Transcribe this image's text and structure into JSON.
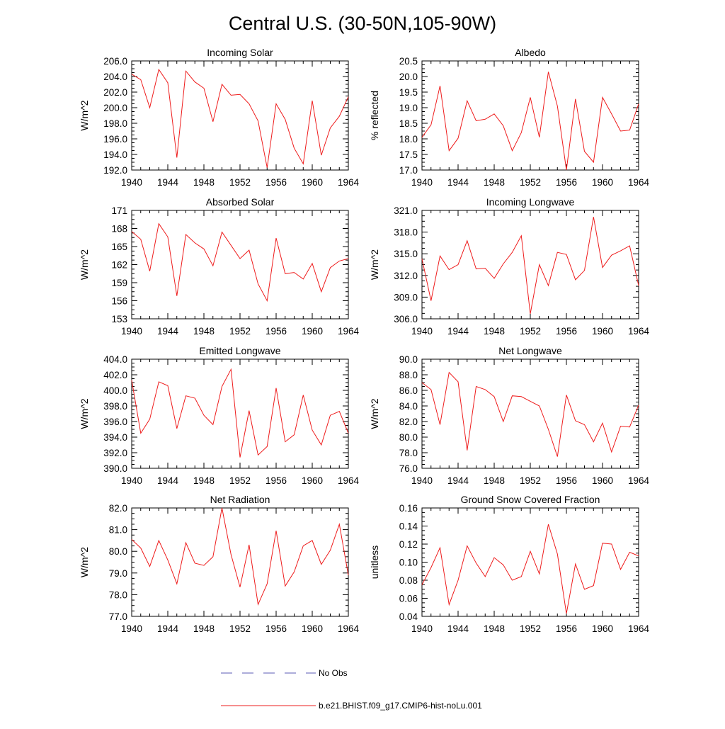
{
  "figure": {
    "title": "Central U.S. (30-50N,105-90W)"
  },
  "legend": {
    "items": [
      {
        "label": "No Obs",
        "color": "#5b5bb5",
        "dash": true
      },
      {
        "label": "b.e21.BHIST.f09_g17.CMIP6-hist-noLu.001",
        "color": "#ee1c1c",
        "dash": false
      }
    ]
  },
  "chart_data": [
    {
      "type": "line",
      "title": "Incoming Solar",
      "ylabel": "W/m^2",
      "xlim": [
        1940,
        1964
      ],
      "ylim": [
        192,
        206
      ],
      "yticks": [
        192,
        194,
        196,
        198,
        200,
        202,
        204,
        206
      ],
      "ytick_labels": [
        "192.0",
        "194.0",
        "196.0",
        "198.0",
        "200.0",
        "202.0",
        "204.0",
        "206.0"
      ],
      "xticks": [
        1940,
        1944,
        1948,
        1952,
        1956,
        1960,
        1964
      ],
      "xtick_labels": [
        "1940",
        "1944",
        "1948",
        "1952",
        "1956",
        "1960",
        "1964"
      ],
      "x": [
        1940,
        1941,
        1942,
        1943,
        1944,
        1945,
        1946,
        1947,
        1948,
        1949,
        1950,
        1951,
        1952,
        1953,
        1954,
        1955,
        1956,
        1957,
        1958,
        1959,
        1960,
        1961,
        1962,
        1963,
        1964
      ],
      "series": [
        {
          "values": [
            204.3,
            203.6,
            200.0,
            204.9,
            203.2,
            193.6,
            204.7,
            203.3,
            202.5,
            198.2,
            203.0,
            201.6,
            201.7,
            200.5,
            198.3,
            192.3,
            200.5,
            198.5,
            194.8,
            192.8,
            200.9,
            193.9,
            197.4,
            198.9,
            201.4
          ]
        }
      ]
    },
    {
      "type": "line",
      "title": "Albedo",
      "ylabel": "% reflected",
      "xlim": [
        1940,
        1964
      ],
      "ylim": [
        17.0,
        20.5
      ],
      "yticks": [
        17.0,
        17.5,
        18.0,
        18.5,
        19.0,
        19.5,
        20.0,
        20.5
      ],
      "ytick_labels": [
        "17.0",
        "17.5",
        "18.0",
        "18.5",
        "19.0",
        "19.5",
        "20.0",
        "20.5"
      ],
      "xticks": [
        1940,
        1944,
        1948,
        1952,
        1956,
        1960,
        1964
      ],
      "xtick_labels": [
        "1940",
        "1944",
        "1948",
        "1952",
        "1956",
        "1960",
        "1964"
      ],
      "x": [
        1940,
        1941,
        1942,
        1943,
        1944,
        1945,
        1946,
        1947,
        1948,
        1949,
        1950,
        1951,
        1952,
        1953,
        1954,
        1955,
        1956,
        1957,
        1958,
        1959,
        1960,
        1961,
        1962,
        1963,
        1964
      ],
      "series": [
        {
          "values": [
            18.05,
            18.45,
            19.7,
            17.62,
            18.02,
            19.22,
            18.58,
            18.63,
            18.8,
            18.42,
            17.62,
            18.2,
            19.33,
            18.05,
            20.15,
            19.05,
            17.0,
            19.28,
            17.6,
            17.25,
            19.33,
            18.8,
            18.25,
            18.28,
            19.12
          ]
        }
      ]
    },
    {
      "type": "line",
      "title": "Absorbed Solar",
      "ylabel": "W/m^2",
      "xlim": [
        1940,
        1964
      ],
      "ylim": [
        153,
        171
      ],
      "yticks": [
        153,
        156,
        159,
        162,
        165,
        168,
        171
      ],
      "ytick_labels": [
        "153",
        "156",
        "159",
        "162",
        "165",
        "168",
        "171"
      ],
      "xticks": [
        1940,
        1944,
        1948,
        1952,
        1956,
        1960,
        1964
      ],
      "xtick_labels": [
        "1940",
        "1944",
        "1948",
        "1952",
        "1956",
        "1960",
        "1964"
      ],
      "x": [
        1940,
        1941,
        1942,
        1943,
        1944,
        1945,
        1946,
        1947,
        1948,
        1949,
        1950,
        1951,
        1952,
        1953,
        1954,
        1955,
        1956,
        1957,
        1958,
        1959,
        1960,
        1961,
        1962,
        1963,
        1964
      ],
      "series": [
        {
          "values": [
            167.5,
            166.2,
            160.9,
            168.8,
            166.6,
            156.8,
            167.0,
            165.6,
            164.6,
            161.8,
            167.4,
            165.2,
            163.0,
            164.4,
            158.8,
            156.0,
            166.4,
            160.5,
            160.7,
            159.6,
            162.2,
            157.5,
            161.5,
            162.6,
            163.0
          ]
        }
      ]
    },
    {
      "type": "line",
      "title": "Incoming Longwave",
      "ylabel": "W/m^2",
      "xlim": [
        1940,
        1964
      ],
      "ylim": [
        306,
        321
      ],
      "yticks": [
        306,
        309,
        312,
        315,
        318,
        321
      ],
      "ytick_labels": [
        "306.0",
        "309.0",
        "312.0",
        "315.0",
        "318.0",
        "321.0"
      ],
      "xticks": [
        1940,
        1944,
        1948,
        1952,
        1956,
        1960,
        1964
      ],
      "xtick_labels": [
        "1940",
        "1944",
        "1948",
        "1952",
        "1956",
        "1960",
        "1964"
      ],
      "x": [
        1940,
        1941,
        1942,
        1943,
        1944,
        1945,
        1946,
        1947,
        1948,
        1949,
        1950,
        1951,
        1952,
        1953,
        1954,
        1955,
        1956,
        1957,
        1958,
        1959,
        1960,
        1961,
        1962,
        1963,
        1964
      ],
      "series": [
        {
          "values": [
            314.3,
            308.5,
            314.7,
            312.8,
            313.5,
            316.8,
            312.9,
            313.0,
            311.6,
            313.6,
            315.2,
            317.5,
            306.7,
            313.5,
            310.6,
            315.2,
            314.9,
            311.4,
            312.7,
            320.1,
            313.1,
            314.8,
            315.4,
            316.1,
            310.6
          ]
        }
      ]
    },
    {
      "type": "line",
      "title": "Emitted Longwave",
      "ylabel": "W/m^2",
      "xlim": [
        1940,
        1964
      ],
      "ylim": [
        390,
        404
      ],
      "yticks": [
        390,
        392,
        394,
        396,
        398,
        400,
        402,
        404
      ],
      "ytick_labels": [
        "390.0",
        "392.0",
        "394.0",
        "396.0",
        "398.0",
        "400.0",
        "402.0",
        "404.0"
      ],
      "xticks": [
        1940,
        1944,
        1948,
        1952,
        1956,
        1960,
        1964
      ],
      "xtick_labels": [
        "1940",
        "1944",
        "1948",
        "1952",
        "1956",
        "1960",
        "1964"
      ],
      "x": [
        1940,
        1941,
        1942,
        1943,
        1944,
        1945,
        1946,
        1947,
        1948,
        1949,
        1950,
        1951,
        1952,
        1953,
        1954,
        1955,
        1956,
        1957,
        1958,
        1959,
        1960,
        1961,
        1962,
        1963,
        1964
      ],
      "series": [
        {
          "values": [
            401.3,
            394.5,
            396.3,
            401.1,
            400.6,
            395.1,
            399.3,
            399.0,
            396.8,
            395.6,
            400.5,
            402.7,
            391.4,
            397.4,
            391.7,
            392.8,
            400.3,
            393.4,
            394.3,
            399.4,
            394.9,
            393.0,
            396.8,
            397.3,
            394.5
          ]
        }
      ]
    },
    {
      "type": "line",
      "title": "Net Longwave",
      "ylabel": "W/m^2",
      "xlim": [
        1940,
        1964
      ],
      "ylim": [
        76,
        90
      ],
      "yticks": [
        76,
        78,
        80,
        82,
        84,
        86,
        88,
        90
      ],
      "ytick_labels": [
        "76.0",
        "78.0",
        "80.0",
        "82.0",
        "84.0",
        "86.0",
        "88.0",
        "90.0"
      ],
      "xticks": [
        1940,
        1944,
        1948,
        1952,
        1956,
        1960,
        1964
      ],
      "xtick_labels": [
        "1940",
        "1944",
        "1948",
        "1952",
        "1956",
        "1960",
        "1964"
      ],
      "x": [
        1940,
        1941,
        1942,
        1943,
        1944,
        1945,
        1946,
        1947,
        1948,
        1949,
        1950,
        1951,
        1952,
        1953,
        1954,
        1955,
        1956,
        1957,
        1958,
        1959,
        1960,
        1961,
        1962,
        1963,
        1964
      ],
      "series": [
        {
          "values": [
            87.0,
            86.1,
            81.6,
            88.3,
            87.1,
            78.3,
            86.5,
            86.1,
            85.2,
            82.0,
            85.3,
            85.2,
            84.6,
            84.0,
            81.0,
            77.5,
            85.4,
            82.1,
            81.6,
            79.4,
            81.8,
            78.1,
            81.4,
            81.3,
            84.1
          ]
        }
      ]
    },
    {
      "type": "line",
      "title": "Net Radiation",
      "ylabel": "W/m^2",
      "xlim": [
        1940,
        1964
      ],
      "ylim": [
        77,
        82
      ],
      "yticks": [
        77,
        78,
        79,
        80,
        81,
        82
      ],
      "ytick_labels": [
        "77.0",
        "78.0",
        "79.0",
        "80.0",
        "81.0",
        "82.0"
      ],
      "xticks": [
        1940,
        1944,
        1948,
        1952,
        1956,
        1960,
        1964
      ],
      "xtick_labels": [
        "1940",
        "1944",
        "1948",
        "1952",
        "1956",
        "1960",
        "1964"
      ],
      "x": [
        1940,
        1941,
        1942,
        1943,
        1944,
        1945,
        1946,
        1947,
        1948,
        1949,
        1950,
        1951,
        1952,
        1953,
        1954,
        1955,
        1956,
        1957,
        1958,
        1959,
        1960,
        1961,
        1962,
        1963,
        1964
      ],
      "series": [
        {
          "values": [
            80.55,
            80.15,
            79.3,
            80.5,
            79.6,
            78.5,
            80.4,
            79.45,
            79.35,
            79.75,
            82.0,
            79.85,
            78.35,
            80.3,
            77.55,
            78.5,
            80.95,
            78.4,
            79.05,
            80.25,
            80.5,
            79.4,
            80.05,
            81.25,
            78.9
          ]
        }
      ]
    },
    {
      "type": "line",
      "title": "Ground Snow Covered Fraction",
      "ylabel": "unitless",
      "xlim": [
        1940,
        1964
      ],
      "ylim": [
        0.04,
        0.16
      ],
      "yticks": [
        0.04,
        0.06,
        0.08,
        0.1,
        0.12,
        0.14,
        0.16
      ],
      "ytick_labels": [
        "0.04",
        "0.06",
        "0.08",
        "0.10",
        "0.12",
        "0.14",
        "0.16"
      ],
      "xticks": [
        1940,
        1944,
        1948,
        1952,
        1956,
        1960,
        1964
      ],
      "xtick_labels": [
        "1940",
        "1944",
        "1948",
        "1952",
        "1956",
        "1960",
        "1964"
      ],
      "x": [
        1940,
        1941,
        1942,
        1943,
        1944,
        1945,
        1946,
        1947,
        1948,
        1949,
        1950,
        1951,
        1952,
        1953,
        1954,
        1955,
        1956,
        1957,
        1958,
        1959,
        1960,
        1961,
        1962,
        1963,
        1964
      ],
      "series": [
        {
          "values": [
            0.075,
            0.094,
            0.116,
            0.053,
            0.08,
            0.118,
            0.099,
            0.084,
            0.105,
            0.097,
            0.08,
            0.084,
            0.112,
            0.087,
            0.142,
            0.109,
            0.043,
            0.098,
            0.07,
            0.074,
            0.121,
            0.12,
            0.092,
            0.111,
            0.107
          ]
        }
      ]
    }
  ]
}
